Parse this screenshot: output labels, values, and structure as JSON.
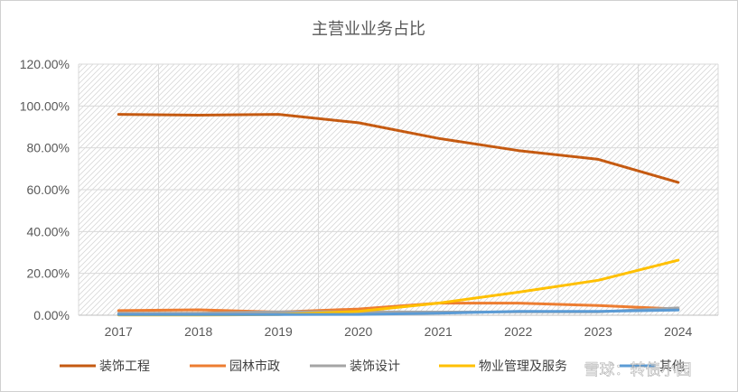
{
  "chart_data": {
    "type": "line",
    "title": "主营业业务占比",
    "categories": [
      "2017",
      "2018",
      "2019",
      "2020",
      "2021",
      "2022",
      "2023",
      "2024"
    ],
    "ylim": [
      0,
      120
    ],
    "yticks": [
      "0.00%",
      "20.00%",
      "40.00%",
      "60.00%",
      "80.00%",
      "100.00%",
      "120.00%"
    ],
    "xlabel": "",
    "ylabel": "",
    "legend_position": "bottom",
    "series": [
      {
        "name": "装饰工程",
        "color": "#c55a11",
        "values": [
          96.0,
          95.6,
          96.0,
          92.0,
          84.5,
          78.7,
          74.5,
          63.5
        ]
      },
      {
        "name": "园林市政",
        "color": "#ed7d31",
        "values": [
          2.2,
          2.6,
          1.5,
          3.0,
          5.8,
          5.8,
          4.6,
          3.0
        ]
      },
      {
        "name": "装饰设计",
        "color": "#a5a5a5",
        "values": [
          1.0,
          1.0,
          1.6,
          1.6,
          1.5,
          1.6,
          1.6,
          3.5
        ]
      },
      {
        "name": "物业管理及服务",
        "color": "#ffc000",
        "values": [
          0.1,
          0.1,
          0.3,
          1.8,
          5.8,
          11.0,
          16.7,
          26.3
        ]
      },
      {
        "name": "其他",
        "color": "#5b9bd5",
        "values": [
          0.3,
          0.3,
          0.3,
          0.4,
          1.0,
          1.8,
          1.8,
          2.5
        ]
      }
    ]
  },
  "watermark": "雪球：转债小园"
}
